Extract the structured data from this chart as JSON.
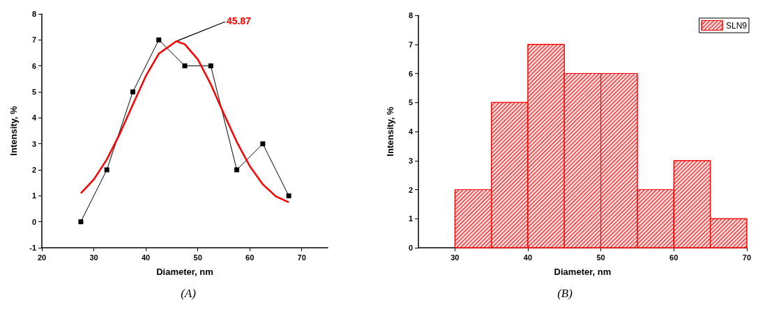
{
  "chart_data": [
    {
      "type": "line",
      "xlabel": "Diameter, nm",
      "ylabel": "Intensity, %",
      "xlim": [
        20,
        75
      ],
      "xticks": [
        20,
        30,
        40,
        50,
        60,
        70
      ],
      "ylim": [
        -1,
        8
      ],
      "yticks": [
        -1,
        0,
        1,
        2,
        3,
        4,
        5,
        6,
        7,
        8
      ],
      "grid": false,
      "legend": false,
      "series": [
        {
          "type": "line",
          "color": "#000000",
          "marker": "square",
          "x": [
            27.5,
            32.5,
            37.5,
            42.5,
            47.5,
            52.5,
            57.5,
            62.5,
            67.5
          ],
          "values": [
            0,
            2,
            5,
            7,
            6,
            6,
            2,
            3,
            1
          ]
        },
        {
          "type": "line",
          "color": "#ff0000",
          "marker": "none",
          "x": [
            27.5,
            30,
            32.5,
            35,
            37.5,
            40,
            42.5,
            45.87,
            47.5,
            50,
            52.5,
            55,
            57.5,
            60,
            62.5,
            65,
            67.5
          ],
          "values": [
            1.1,
            1.63,
            2.4,
            3.39,
            4.51,
            5.61,
            6.47,
            6.95,
            6.83,
            6.25,
            5.29,
            4.16,
            3.07,
            2.14,
            1.44,
            0.98,
            0.75
          ]
        }
      ],
      "annotations": [
        {
          "text": "45.87",
          "x": 45.87,
          "y": 6.95
        },
        "(A)"
      ]
    },
    {
      "type": "histogram",
      "xlabel": "Diameter, nm",
      "ylabel": "Intensity, %",
      "xlim": [
        25,
        70
      ],
      "xticks": [
        30,
        40,
        50,
        60,
        70
      ],
      "ylim": [
        0,
        8
      ],
      "yticks": [
        0,
        1,
        2,
        3,
        4,
        5,
        6,
        7,
        8
      ],
      "grid": false,
      "legend": "top right",
      "bins": [
        30,
        35,
        40,
        45,
        50,
        55,
        60,
        65,
        70
      ],
      "series": [
        {
          "name": "SLN9",
          "color": "#ff0000",
          "values": [
            2,
            5,
            7,
            6,
            6,
            2,
            3,
            1
          ]
        }
      ],
      "annotations": [
        "(B)"
      ]
    }
  ]
}
